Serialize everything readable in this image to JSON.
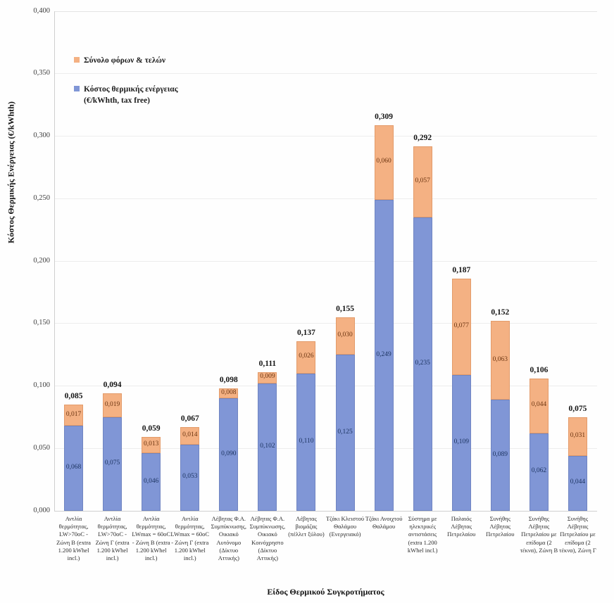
{
  "chart_data": {
    "type": "bar",
    "subtype": "stacked-column",
    "title": "",
    "xlabel": "Είδος Θερμικού Συγκροτήματος",
    "ylabel": "Κόστος Θερμικής Ενέργειας (€/kWhth)",
    "ylim": [
      0,
      0.4
    ],
    "ytick_step": 0.05,
    "decimal_separator": ",",
    "grid": true,
    "legend_position": "top-left-inside",
    "categories": [
      "Αντλία θερμότητας, LW>70oC - Ζώνη Β (extra 1.200 kWhel incl.)",
      "Αντλία θερμότητας, LW>70oC - Ζώνη Γ (extra 1.200 kWhel incl.)",
      "Αντλία θερμότητας, LWmax = 60oC - Ζώνη Β (extra 1.200 kWhel incl.)",
      "Αντλία θερμότητας, LWmax = 60oC - Ζώνη Γ (extra 1.200 kWhel incl.)",
      "Λέβητας Φ.Α. Συμπύκνωσης, Οικιακό Αυτόνομο (Δίκτυο Αττικής)",
      "Λέβητας Φ.Α. Συμπύκνωσης, Οικιακό Κοινόχρηστο (Δίκτυο Αττικής)",
      "Λέβητας βιομάζας (πέλλετ ξύλου)",
      "Τζάκι Κλειστού Θαλάμου (Ενεργειακό)",
      "Τζάκι Ανοιχτού Θαλάμου",
      "Σύστημα με ηλεκτρικές αντιστάσεις (extra 1.200 kWhel incl.)",
      "Παλαιός Λέβητας Πετρελαίου",
      "Συνήθης Λέβητας Πετρελαίου",
      "Συνήθης Λέβητας Πετρελαίου με επίδομα (2 τέκνα), Ζώνη Β",
      "Συνήθης Λέβητας Πετρελαίου με επίδομα (2 τέκνα), Ζώνη Γ"
    ],
    "series": [
      {
        "name": "Κόστος θερμικής ενέργειας (€/kWhth, tax free)",
        "color": "#8096D6",
        "border_color": "#7085C2",
        "label_color": "#1C3461",
        "values": [
          0.068,
          0.075,
          0.046,
          0.053,
          0.09,
          0.102,
          0.11,
          0.125,
          0.249,
          0.235,
          0.109,
          0.089,
          0.062,
          0.044
        ]
      },
      {
        "name": "Σύνολο φόρων & τελών",
        "color": "#F4B183",
        "border_color": "#E39B6A",
        "label_color": "#6B3410",
        "values": [
          0.017,
          0.019,
          0.013,
          0.014,
          0.008,
          0.009,
          0.026,
          0.03,
          0.06,
          0.057,
          0.077,
          0.063,
          0.044,
          0.031
        ]
      }
    ],
    "totals": [
      0.085,
      0.094,
      0.059,
      0.067,
      0.098,
      0.111,
      0.137,
      0.155,
      0.309,
      0.292,
      0.187,
      0.152,
      0.106,
      0.075
    ],
    "legend": {
      "items": [
        {
          "color": "#F4B183",
          "lines": [
            "Σύνολο φόρων & τελών"
          ]
        },
        {
          "color": "#8096D6",
          "lines": [
            "Κόστος θερμικής ενέργειας",
            "(€/kWhth, tax free)"
          ]
        }
      ]
    },
    "colors": {
      "gridline": "#ededed",
      "axis_line": "#cfcfcf",
      "tick_label": "#3d3d3d",
      "total_label": "#141414",
      "background": "#fefefe"
    }
  }
}
